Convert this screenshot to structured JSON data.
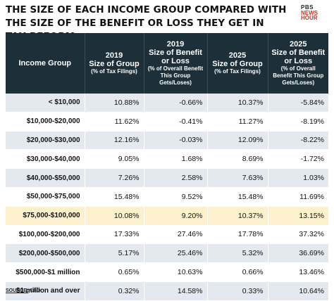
{
  "title_line1": "The size of each income group compared with",
  "title_line2": "the size of the benefit or loss they get in tax reform",
  "logo": {
    "line1": "PBS",
    "line2": "NEWS",
    "line3": "HOUR"
  },
  "columns": [
    {
      "main": "Income Group",
      "sub": ""
    },
    {
      "year": "2019",
      "main": "Size of Group",
      "sub": "(% of Tax Filings)"
    },
    {
      "year": "2019",
      "main": "Size of Benefit or Loss",
      "sub": "(% of Overall Benefit This Group Gets/Loses)"
    },
    {
      "year": "2025",
      "main": "Size of Group",
      "sub": "(% of Tax Filings)"
    },
    {
      "year": "2025",
      "main": "Size of Benefit or Loss",
      "sub": "(% of Overall Benefit This Group Gets/Loses)"
    }
  ],
  "rows": [
    [
      "< $10,000",
      "10.88%",
      "-0.66%",
      "10.37%",
      "-5.84%"
    ],
    [
      "$10,000-$20,000",
      "11.62%",
      "-0.41%",
      "11.27%",
      "-8.19%"
    ],
    [
      "$20,000-$30,000",
      "12.16%",
      "-0.03%",
      "12.09%",
      "-8.22%"
    ],
    [
      "$30,000-$40,000",
      "9.05%",
      "1.68%",
      "8.69%",
      "-1.72%"
    ],
    [
      "$40,000-$50,000",
      "7.26%",
      "2.58%",
      "7.63%",
      "1.03%"
    ],
    [
      "$50,000-$75,000",
      "15.48%",
      "9.52%",
      "15.48%",
      "11.69%"
    ],
    [
      "$75,000-$100,000",
      "10.08%",
      "9.20%",
      "10.37%",
      "13.15%"
    ],
    [
      "$100,000-$200,000",
      "17.33%",
      "27.46%",
      "17.78%",
      "37.32%"
    ],
    [
      "$200,000-$500,000",
      "5.17%",
      "25.46%",
      "5.32%",
      "36.69%"
    ],
    [
      "$500,000-$1 million",
      "0.65%",
      "10.63%",
      "0.66%",
      "13.46%"
    ],
    [
      "$1 million and over",
      "0.32%",
      "14.58%",
      "0.33%",
      "10.64%"
    ]
  ],
  "highlight_row_index": 6,
  "colors": {
    "header_bg": "#1d3039",
    "stripe": "#e4e9ef",
    "highlight": "#fcf1cc",
    "logo_accent": "#c2381f"
  },
  "source_label": "SOURCE:",
  "source_text": "CBO"
}
